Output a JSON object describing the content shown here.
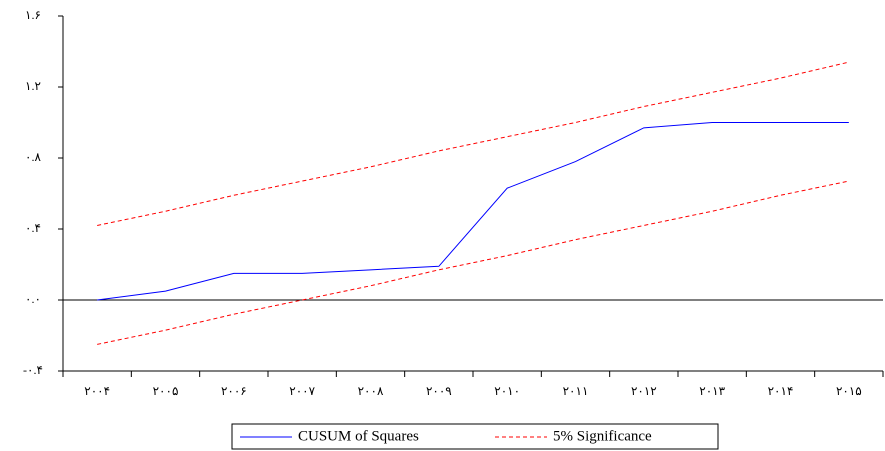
{
  "chart_data": {
    "type": "line",
    "categories": [
      "۲۰۰۴",
      "۲۰۰۵",
      "۲۰۰۶",
      "۲۰۰۷",
      "۲۰۰۸",
      "۲۰۰۹",
      "۲۰۱۰",
      "۲۰۱۱",
      "۲۰۱۲",
      "۲۰۱۳",
      "۲۰۱۴",
      "۲۰۱۵"
    ],
    "series": [
      {
        "name": "CUSUM of Squares",
        "color": "#0000ff",
        "dashed": false,
        "values": [
          0.0,
          0.05,
          0.15,
          0.15,
          0.17,
          0.19,
          0.63,
          0.78,
          0.97,
          1.0,
          1.0,
          1.0
        ]
      },
      {
        "name": "5% Significance",
        "color": "#ff0000",
        "dashed": true,
        "values": [
          0.42,
          0.5,
          0.59,
          0.67,
          0.75,
          0.84,
          0.92,
          1.0,
          1.09,
          1.17,
          1.25,
          1.34
        ],
        "lower_values": [
          -0.25,
          -0.17,
          -0.08,
          0.0,
          0.08,
          0.17,
          0.25,
          0.34,
          0.42,
          0.5,
          0.59,
          0.67
        ]
      }
    ],
    "ylim": [
      -0.4,
      1.6
    ],
    "yticks": [
      {
        "value": -0.4,
        "label": "-۰.۴"
      },
      {
        "value": 0.0,
        "label": "۰.۰"
      },
      {
        "value": 0.4,
        "label": "۰.۴"
      },
      {
        "value": 0.8,
        "label": "۰.۸"
      },
      {
        "value": 1.2,
        "label": "۱.۲"
      },
      {
        "value": 1.6,
        "label": "۱.۶"
      }
    ],
    "zero_line": 0.0,
    "legend": "bottom"
  }
}
